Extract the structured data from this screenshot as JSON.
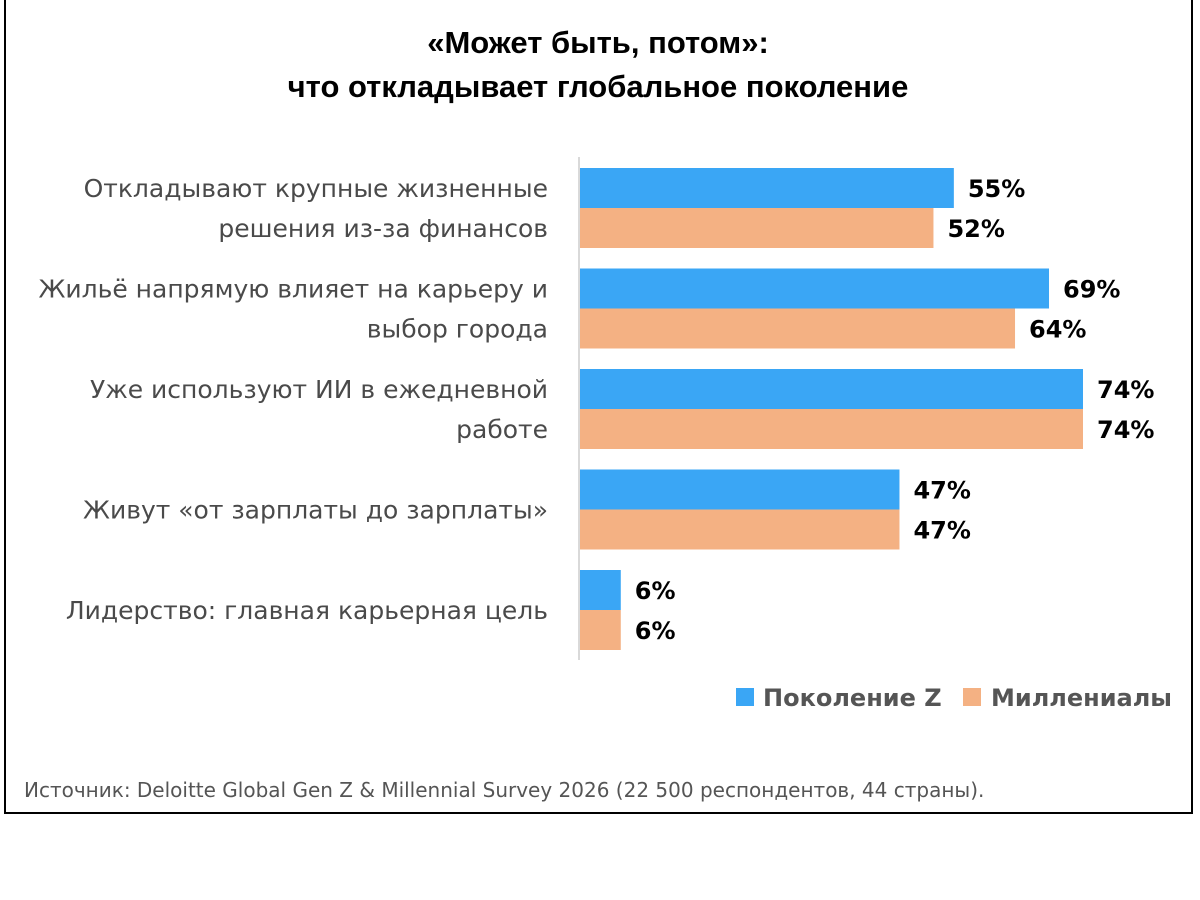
{
  "chart_data": {
    "type": "bar",
    "orientation": "horizontal",
    "title": [
      "«Может быть, потом»:",
      "что откладывает глобальное поколение"
    ],
    "categories": [
      [
        "Откладывают крупные жизненные",
        "решения из-за финансов"
      ],
      [
        "Жильё напрямую влияет на карьеру и",
        "выбор города"
      ],
      [
        "Уже используют ИИ в ежедневной",
        "работе"
      ],
      [
        "Живут «от зарплаты до зарплаты»"
      ],
      [
        "Лидерство: главная карьерная цель"
      ]
    ],
    "series": [
      {
        "name": "Поколение Z",
        "color": "#3aa6f5",
        "values": [
          55,
          69,
          74,
          47,
          6
        ],
        "labels": [
          "55%",
          "69%",
          "74%",
          "47%",
          "6%"
        ]
      },
      {
        "name": "Миллениалы",
        "color": "#f4b183",
        "values": [
          52,
          64,
          74,
          47,
          6
        ],
        "labels": [
          "52%",
          "64%",
          "74%",
          "47%",
          "6%"
        ]
      }
    ],
    "xlim": [
      0,
      74
    ],
    "grid": false,
    "legend": "bottom-right",
    "source": "Источник: Deloitte Global Gen Z & Millennial Survey 2026 (22 500 респондентов, 44 страны)."
  }
}
